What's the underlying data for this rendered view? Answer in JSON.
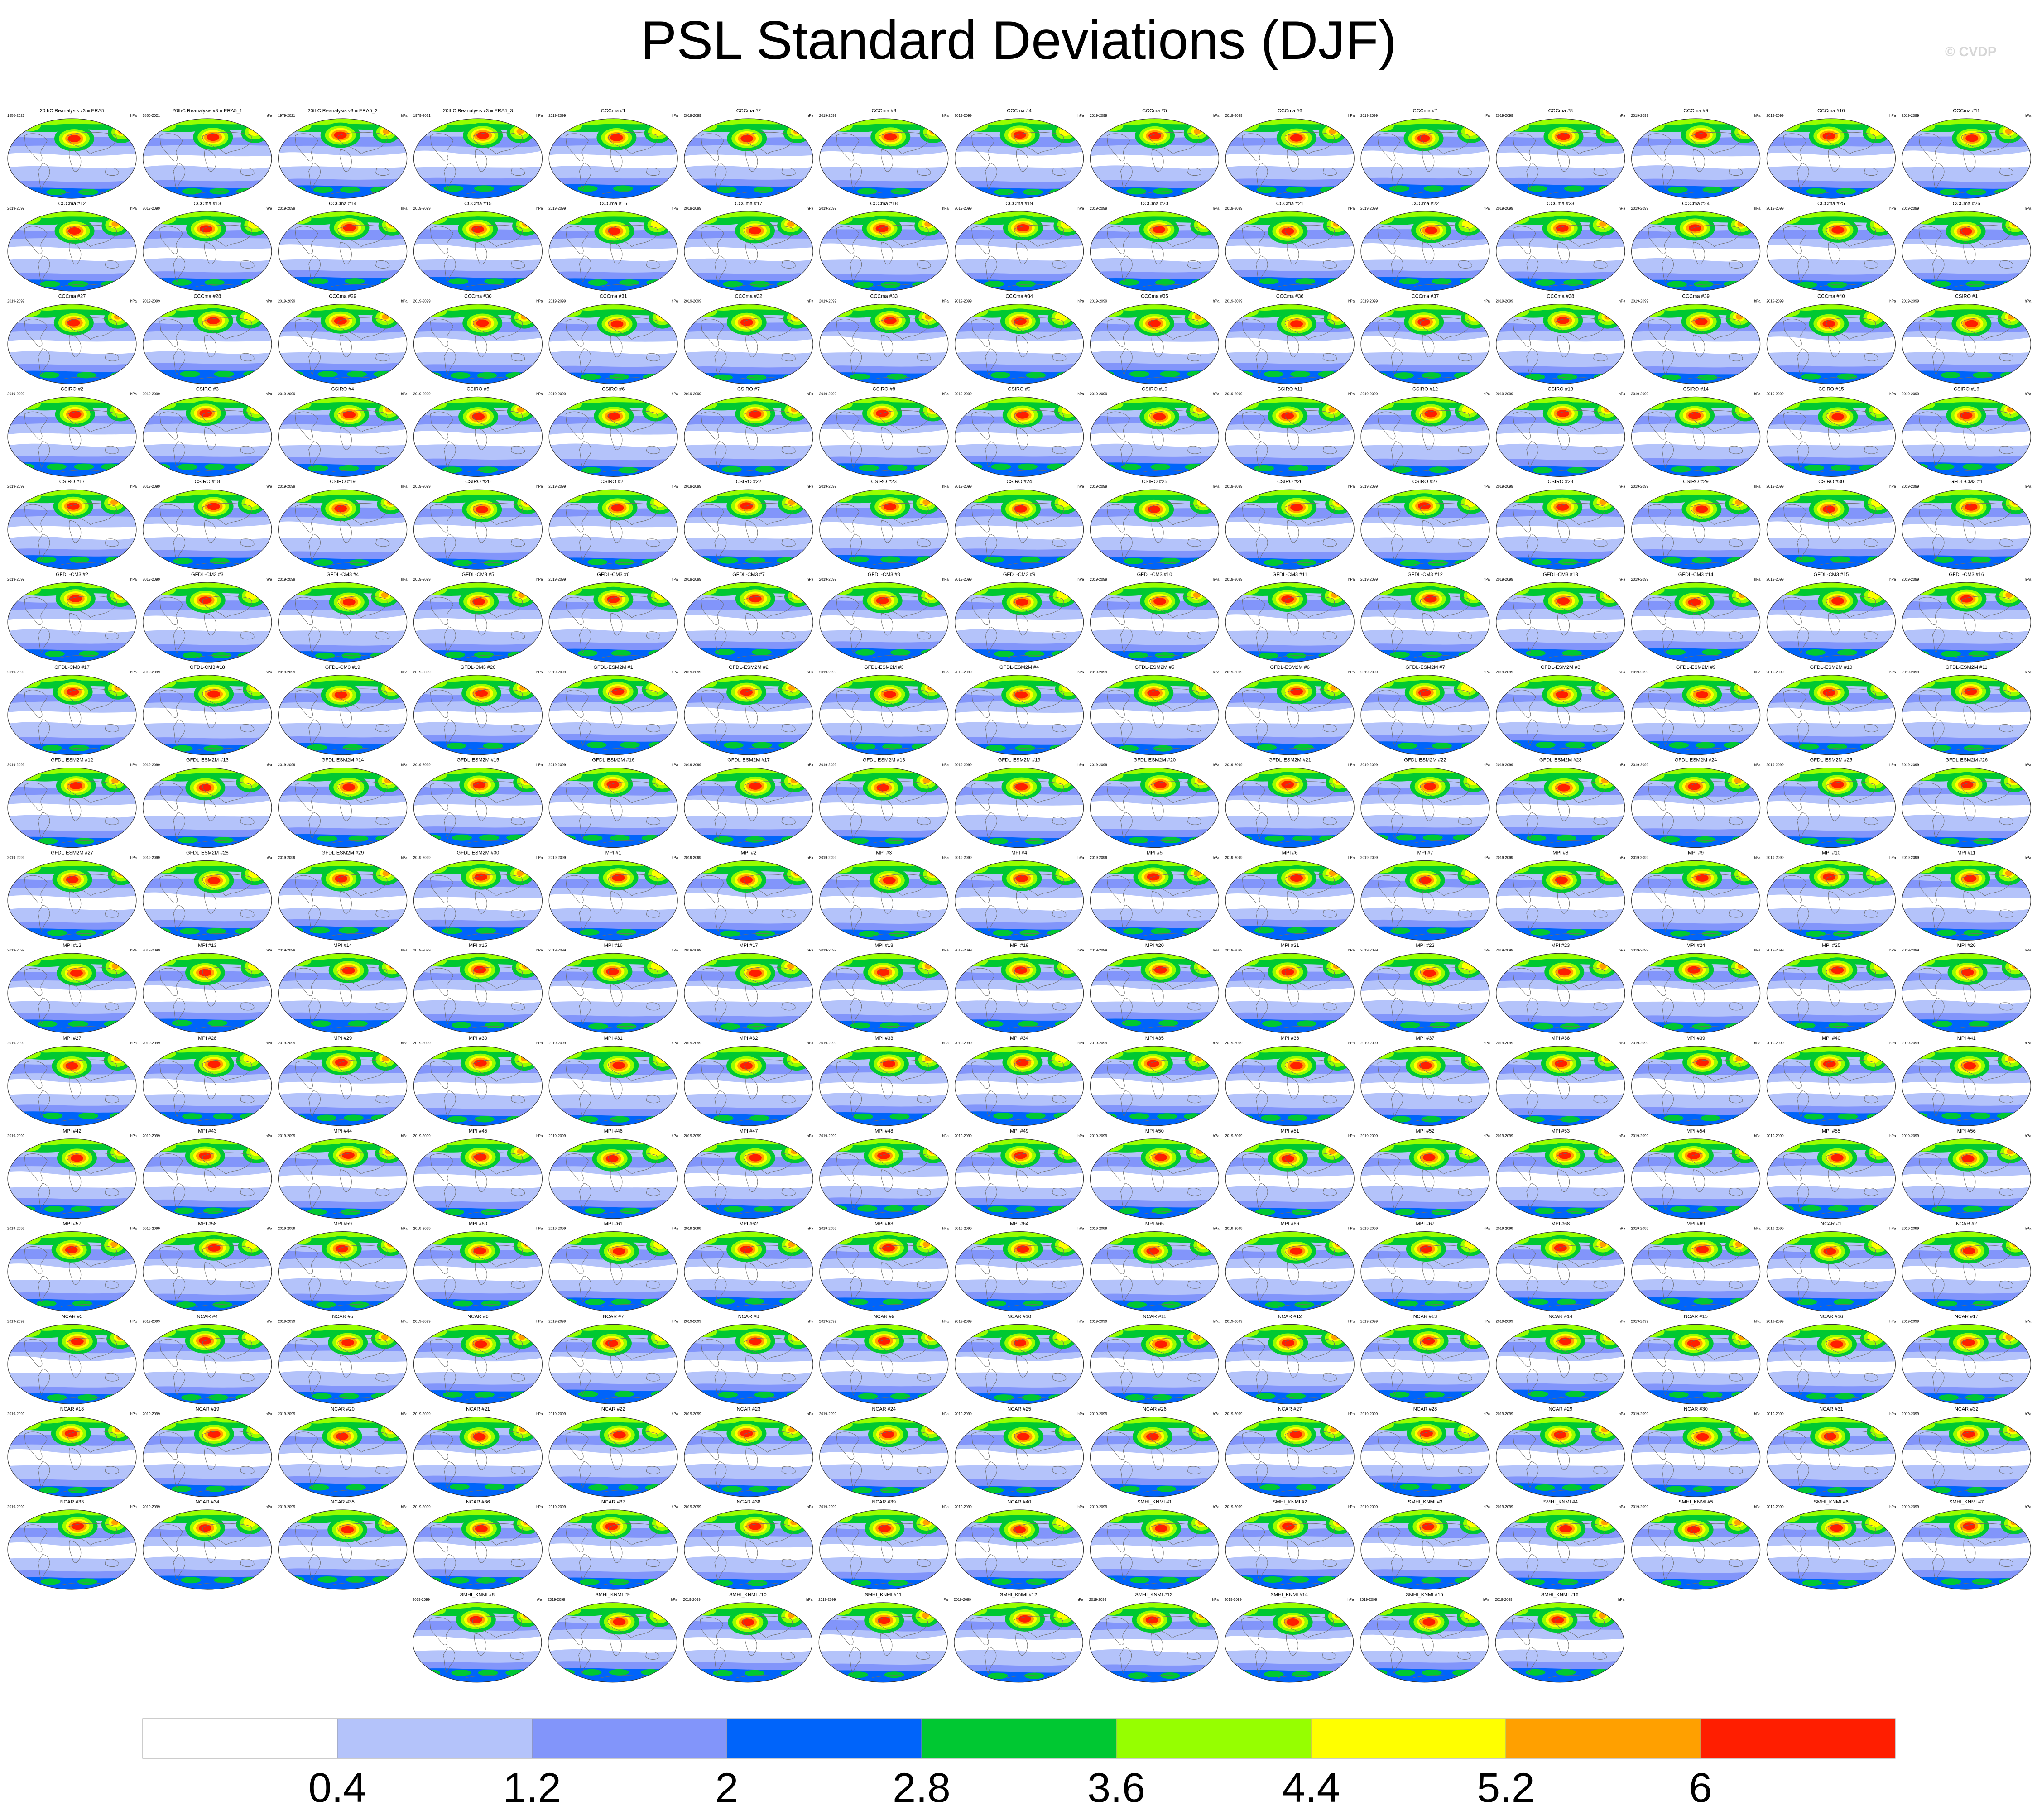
{
  "title": "PSL Standard Deviations (DJF)",
  "copyright": "© CVDP",
  "chart_data": {
    "type": "heatmap",
    "title": "PSL Standard Deviations (DJF)",
    "projection": "global map, one panel per dataset",
    "units": "hPa",
    "colorbar": {
      "levels": [
        0.4,
        1.2,
        2,
        2.8,
        3.6,
        4.4,
        5.2,
        6
      ],
      "level_labels": [
        "0.4",
        "1.2",
        "2",
        "2.8",
        "3.6",
        "4.4",
        "5.2",
        "6"
      ],
      "colors": [
        "#ffffff",
        "#b4c3fa",
        "#8295fa",
        "#0064fa",
        "#00c832",
        "#96ff00",
        "#ffff00",
        "#ffa000",
        "#ff1e00"
      ]
    },
    "observation_panels": [
      {
        "name": "20thC Reanalysis v3 ≡ ERA5",
        "years": "1850-2021"
      },
      {
        "name": "20thC Reanalysis v3 ≡ ERA5_1",
        "years": "1850-2021"
      },
      {
        "name": "20thC Reanalysis v3 ≡ ERA5_2",
        "years": "1979-2021"
      },
      {
        "name": "20thC Reanalysis v3 ≡ ERA5_3",
        "years": "1979-2021"
      }
    ],
    "model_period": "2019-2099",
    "model_groups": [
      {
        "name": "CCCma",
        "members": 40
      },
      {
        "name": "CSIRO",
        "members": 30
      },
      {
        "name": "GFDL-CM3",
        "members": 20
      },
      {
        "name": "GFDL-ESM2M",
        "members": 30
      },
      {
        "name": "MPI",
        "members": 69
      },
      {
        "name": "NCAR",
        "members": 40
      },
      {
        "name": "SMHI_KNMI",
        "members": 16
      }
    ]
  }
}
